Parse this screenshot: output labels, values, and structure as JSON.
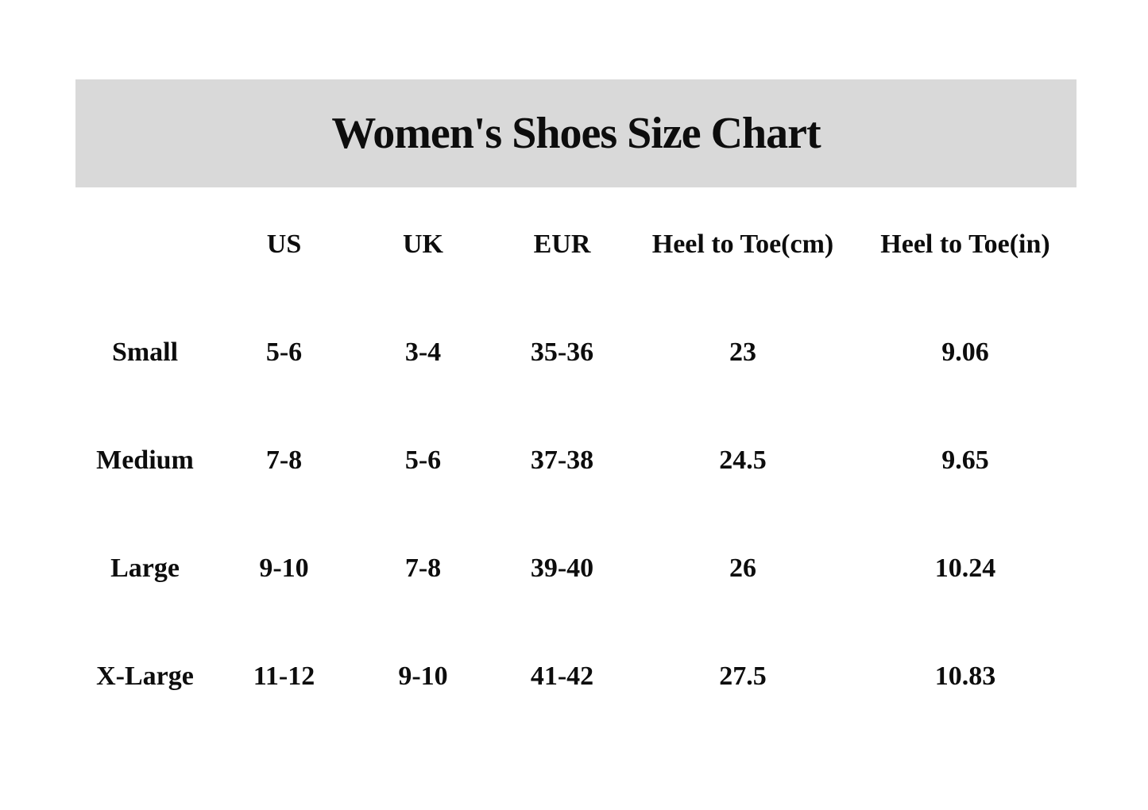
{
  "banner": {
    "title": "Women's Shoes Size Chart"
  },
  "colors": {
    "banner_bg": "#d9d9d9",
    "text": "#0d0d0d",
    "page_bg": "#ffffff"
  },
  "table": {
    "headers": [
      "",
      "US",
      "UK",
      "EUR",
      "Heel to Toe(cm)",
      "Heel to Toe(in)"
    ],
    "rows": [
      {
        "size": "Small",
        "us": "5-6",
        "uk": "3-4",
        "eur": "35-36",
        "heel_to_toe_cm": "23",
        "heel_to_toe_in": "9.06"
      },
      {
        "size": "Medium",
        "us": "7-8",
        "uk": "5-6",
        "eur": "37-38",
        "heel_to_toe_cm": "24.5",
        "heel_to_toe_in": "9.65"
      },
      {
        "size": "Large",
        "us": "9-10",
        "uk": "7-8",
        "eur": "39-40",
        "heel_to_toe_cm": "26",
        "heel_to_toe_in": "10.24"
      },
      {
        "size": "X-Large",
        "us": "11-12",
        "uk": "9-10",
        "eur": "41-42",
        "heel_to_toe_cm": "27.5",
        "heel_to_toe_in": "10.83"
      }
    ]
  },
  "chart_data": {
    "type": "table",
    "title": "Women's Shoes Size Chart",
    "columns": [
      "Size",
      "US",
      "UK",
      "EUR",
      "Heel to Toe(cm)",
      "Heel to Toe(in)"
    ],
    "rows": [
      [
        "Small",
        "5-6",
        "3-4",
        "35-36",
        "23",
        "9.06"
      ],
      [
        "Medium",
        "7-8",
        "5-6",
        "37-38",
        "24.5",
        "9.65"
      ],
      [
        "Large",
        "9-10",
        "7-8",
        "39-40",
        "26",
        "10.24"
      ],
      [
        "X-Large",
        "11-12",
        "9-10",
        "41-42",
        "27.5",
        "10.83"
      ]
    ]
  }
}
